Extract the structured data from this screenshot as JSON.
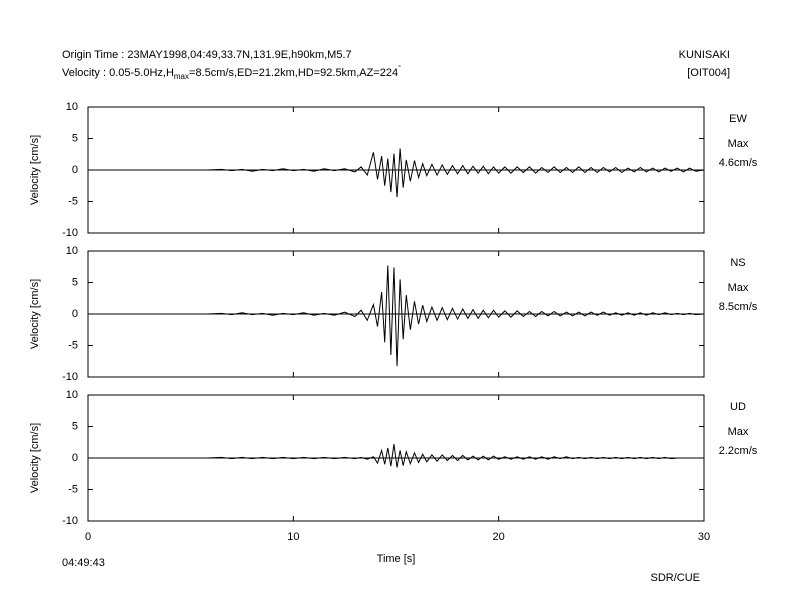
{
  "header": {
    "origin": "Origin Time : 23MAY1998,04:49,33.7N,131.9E,h90km,M5.7",
    "velocity_prefix": "Velocity : 0.05-5.0Hz,H",
    "velocity_subscript": "max",
    "velocity_suffix": "=8.5cm/s,ED=21.2km,HD=92.5km,AZ=224",
    "velocity_degree": "°",
    "station": "KUNISAKI",
    "station_code": "[OIT004]"
  },
  "footer": {
    "start_time": "04:49:43",
    "credit": "SDR/CUE"
  },
  "chart_data": [
    {
      "type": "line",
      "ylabel": "Velocity [cm/s]",
      "component": "EW",
      "max_label": "Max",
      "max_text": "4.6cm/s",
      "xlim": [
        0,
        30
      ],
      "xticks": [
        0,
        10,
        20,
        30
      ],
      "ylim": [
        -10,
        10
      ],
      "yticks": [
        -10,
        -5,
        0,
        5,
        10
      ],
      "series": [
        {
          "color": "#000000",
          "x": [
            0,
            5.8,
            6.5,
            7,
            7.5,
            8,
            8.5,
            9,
            9.5,
            10,
            10.5,
            11,
            11.5,
            12,
            12.5,
            13,
            13.3,
            13.6,
            13.9,
            14.1,
            14.3,
            14.45,
            14.6,
            14.75,
            14.9,
            15.05,
            15.2,
            15.35,
            15.5,
            15.7,
            15.9,
            16.1,
            16.3,
            16.5,
            16.75,
            17,
            17.25,
            17.5,
            17.75,
            18,
            18.25,
            18.5,
            18.75,
            19,
            19.25,
            19.5,
            19.75,
            20,
            20.3,
            20.6,
            20.9,
            21.2,
            21.5,
            21.8,
            22.1,
            22.4,
            22.7,
            23,
            23.3,
            23.6,
            23.9,
            24.2,
            24.5,
            24.8,
            25.1,
            25.4,
            25.7,
            26,
            26.3,
            26.6,
            26.9,
            27.2,
            27.5,
            27.8,
            28.1,
            28.4,
            28.7,
            29,
            29.3,
            29.6,
            30
          ],
          "values": [
            0,
            0,
            0.1,
            -0.1,
            0.1,
            -0.2,
            0.1,
            -0.1,
            0.2,
            -0.1,
            0.1,
            -0.2,
            0.2,
            -0.1,
            0.2,
            -0.3,
            0.5,
            -0.8,
            2.8,
            -1.5,
            2.2,
            -2.5,
            1.8,
            -3.5,
            2.6,
            -4.3,
            3.4,
            -2.8,
            1.6,
            -1.8,
            1.5,
            -1.2,
            1.0,
            -0.9,
            0.9,
            -0.8,
            0.8,
            -0.7,
            0.7,
            -0.6,
            0.7,
            -0.6,
            0.6,
            -0.5,
            0.6,
            -0.6,
            0.5,
            -0.5,
            0.5,
            -0.5,
            0.5,
            -0.4,
            0.5,
            -0.5,
            0.4,
            -0.4,
            0.5,
            -0.4,
            0.4,
            -0.4,
            0.5,
            -0.4,
            0.4,
            -0.4,
            0.4,
            -0.3,
            0.4,
            -0.4,
            0.3,
            -0.3,
            0.4,
            -0.3,
            0.3,
            -0.3,
            0.3,
            -0.2,
            0.3,
            -0.3,
            0.3,
            -0.2,
            0
          ]
        }
      ]
    },
    {
      "type": "line",
      "ylabel": "Velocity [cm/s]",
      "component": "NS",
      "max_label": "Max",
      "max_text": "8.5cm/s",
      "xlim": [
        0,
        30
      ],
      "xticks": [
        0,
        10,
        20,
        30
      ],
      "ylim": [
        -10,
        10
      ],
      "yticks": [
        -10,
        -5,
        0,
        5,
        10
      ],
      "series": [
        {
          "color": "#000000",
          "x": [
            0,
            5.8,
            6.5,
            7,
            7.5,
            8,
            8.5,
            9,
            9.5,
            10,
            10.5,
            11,
            11.5,
            12,
            12.5,
            13,
            13.3,
            13.6,
            13.9,
            14.1,
            14.3,
            14.45,
            14.6,
            14.75,
            14.9,
            15.05,
            15.2,
            15.35,
            15.5,
            15.7,
            15.9,
            16.1,
            16.3,
            16.5,
            16.75,
            17,
            17.25,
            17.5,
            17.75,
            18,
            18.25,
            18.5,
            18.75,
            19,
            19.25,
            19.5,
            19.75,
            20,
            20.3,
            20.6,
            20.9,
            21.2,
            21.5,
            21.8,
            22.1,
            22.4,
            22.7,
            23,
            23.3,
            23.6,
            23.9,
            24.2,
            24.5,
            24.8,
            25.1,
            25.4,
            25.7,
            26,
            26.3,
            26.6,
            26.9,
            27.2,
            27.5,
            27.8,
            28.1,
            28.4,
            28.7,
            29,
            29.3,
            29.6,
            30
          ],
          "values": [
            0,
            0,
            0.1,
            -0.1,
            0.2,
            -0.1,
            0.1,
            -0.2,
            0.1,
            -0.1,
            0.2,
            -0.2,
            0.1,
            -0.2,
            0.3,
            -0.4,
            0.6,
            -1.0,
            1.5,
            -2.0,
            3.5,
            -4.5,
            7.7,
            -6.5,
            7.4,
            -8.3,
            5.5,
            -4.0,
            3.0,
            -2.5,
            2.0,
            -1.6,
            1.4,
            -1.2,
            1.1,
            -1.0,
            1.0,
            -0.9,
            0.9,
            -0.8,
            0.8,
            -0.7,
            0.7,
            -0.7,
            0.6,
            -0.6,
            0.6,
            -0.5,
            0.5,
            -0.5,
            0.5,
            -0.4,
            0.4,
            -0.4,
            0.4,
            -0.3,
            0.4,
            -0.3,
            0.3,
            -0.3,
            0.3,
            -0.3,
            0.3,
            -0.2,
            0.3,
            -0.2,
            0.2,
            -0.2,
            0.2,
            -0.2,
            0.2,
            -0.2,
            0.2,
            -0.1,
            0.2,
            -0.1,
            0.1,
            -0.1,
            0.1,
            -0.1,
            0
          ]
        }
      ]
    },
    {
      "type": "line",
      "ylabel": "Velocity [cm/s]",
      "component": "UD",
      "max_label": "Max",
      "max_text": "2.2cm/s",
      "xlabel": "Time [s]",
      "xlim": [
        0,
        30
      ],
      "xticks": [
        0,
        10,
        20,
        30
      ],
      "ylim": [
        -10,
        10
      ],
      "yticks": [
        -10,
        -5,
        0,
        5,
        10
      ],
      "series": [
        {
          "color": "#000000",
          "x": [
            0,
            5.8,
            6.5,
            7,
            7.5,
            8,
            8.5,
            9,
            9.5,
            10,
            10.5,
            11,
            11.5,
            12,
            12.5,
            13,
            13.3,
            13.6,
            13.9,
            14.1,
            14.3,
            14.45,
            14.6,
            14.75,
            14.9,
            15.05,
            15.2,
            15.35,
            15.5,
            15.7,
            15.9,
            16.1,
            16.3,
            16.5,
            16.75,
            17,
            17.25,
            17.5,
            17.75,
            18,
            18.25,
            18.5,
            18.75,
            19,
            19.25,
            19.5,
            19.75,
            20,
            20.3,
            20.6,
            20.9,
            21.2,
            21.5,
            21.8,
            22.1,
            22.4,
            22.7,
            23,
            23.3,
            23.6,
            23.9,
            24.2,
            24.5,
            24.8,
            25.1,
            25.4,
            25.7,
            26,
            26.3,
            26.6,
            26.9,
            27.2,
            27.5,
            27.8,
            28.1,
            28.4,
            28.7,
            29,
            29.3,
            29.6,
            30
          ],
          "values": [
            0,
            0,
            0.1,
            -0.1,
            0.1,
            -0.1,
            0.1,
            -0.1,
            0.1,
            -0.1,
            0.1,
            -0.1,
            0.1,
            -0.1,
            0.1,
            -0.1,
            0.1,
            -0.2,
            0.2,
            -0.8,
            1.2,
            -1.0,
            1.6,
            -1.3,
            2.2,
            -1.5,
            1.2,
            -1.2,
            1.0,
            -0.9,
            0.8,
            -0.7,
            0.6,
            -0.6,
            0.5,
            -0.5,
            0.5,
            -0.4,
            0.4,
            -0.4,
            0.4,
            -0.3,
            0.3,
            -0.3,
            0.3,
            -0.3,
            0.3,
            -0.2,
            0.2,
            -0.2,
            0.2,
            -0.2,
            0.2,
            -0.2,
            0.2,
            -0.2,
            0.2,
            -0.1,
            0.2,
            -0.1,
            0.1,
            -0.1,
            0.1,
            -0.1,
            0.1,
            -0.1,
            0.1,
            -0.1,
            0.1,
            -0.1,
            0.1,
            -0.1,
            0.1,
            -0.1,
            0.1,
            -0.1,
            0,
            0,
            0,
            0,
            0
          ]
        }
      ]
    }
  ]
}
